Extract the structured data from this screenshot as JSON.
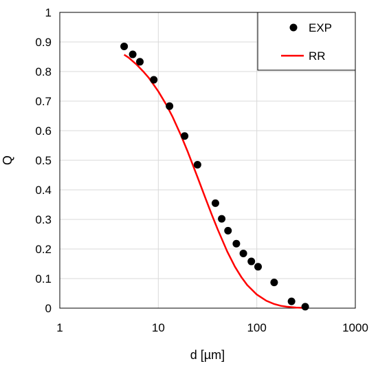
{
  "chart_data": {
    "type": "scatter",
    "title": "",
    "xlabel": "d [µm]",
    "ylabel": "Q",
    "xscale": "log",
    "xlim": [
      1,
      1000
    ],
    "ylim": [
      0,
      1
    ],
    "x_ticks": [
      "1",
      "10",
      "100",
      "1000"
    ],
    "y_ticks": [
      "0",
      "0.1",
      "0.2",
      "0.3",
      "0.4",
      "0.5",
      "0.6",
      "0.7",
      "0.8",
      "0.9",
      "1"
    ],
    "grid": true,
    "legend_position": "top-right",
    "series": [
      {
        "name": "EXP",
        "kind": "markers",
        "color": "#000000",
        "x": [
          4.5,
          5.5,
          6.5,
          9,
          13,
          18.5,
          25,
          38,
          44,
          51,
          62,
          73,
          88,
          103,
          150,
          225,
          310
        ],
        "y": [
          0.885,
          0.858,
          0.833,
          0.772,
          0.683,
          0.582,
          0.485,
          0.355,
          0.302,
          0.262,
          0.218,
          0.185,
          0.158,
          0.14,
          0.087,
          0.023,
          0.005
        ]
      },
      {
        "name": "RR",
        "kind": "line",
        "color": "#ff0000",
        "x": [
          4.5,
          5,
          6,
          7,
          8,
          10,
          12,
          14,
          17,
          20,
          25,
          30,
          35,
          40,
          50,
          60,
          70,
          80,
          100,
          125,
          150,
          175,
          200,
          250,
          300
        ],
        "y": [
          0.857,
          0.847,
          0.824,
          0.801,
          0.779,
          0.733,
          0.689,
          0.646,
          0.584,
          0.527,
          0.443,
          0.373,
          0.315,
          0.267,
          0.192,
          0.14,
          0.104,
          0.078,
          0.046,
          0.025,
          0.014,
          0.008,
          0.005,
          0.002,
          0.001
        ]
      }
    ]
  }
}
